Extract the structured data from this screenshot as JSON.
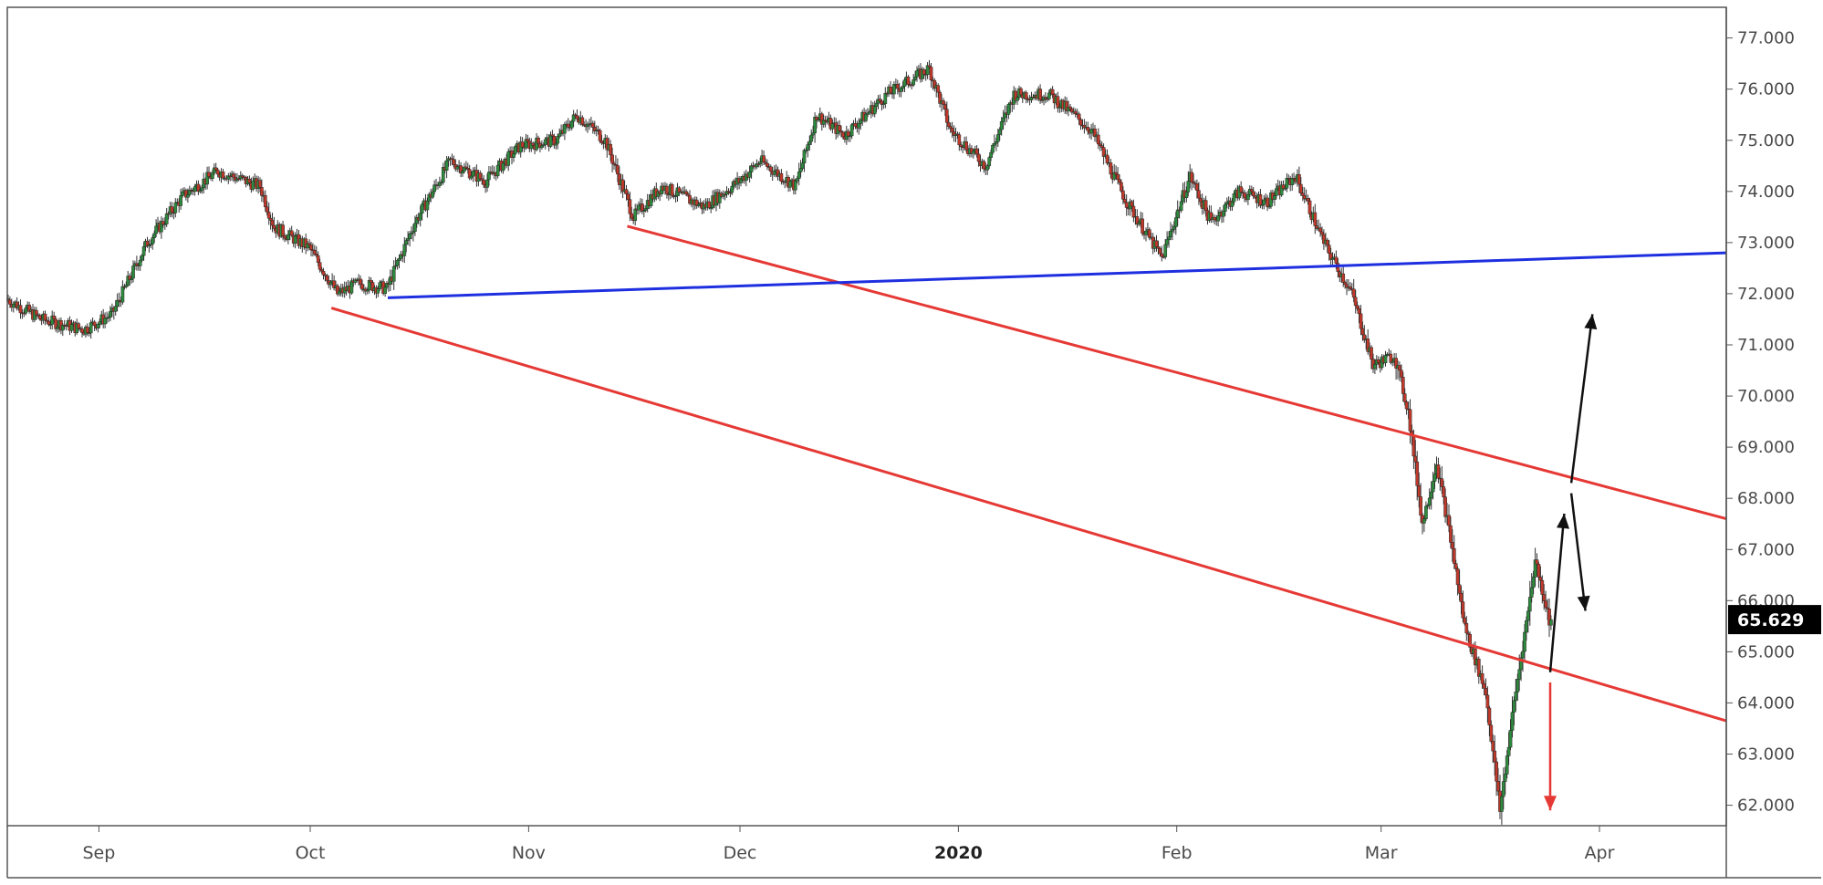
{
  "chart_data": {
    "type": "candlestick",
    "title": "",
    "xlabel": "",
    "ylabel": "",
    "ylim": [
      61.6,
      77.6
    ],
    "y_ticks": [
      "62.000",
      "63.000",
      "64.000",
      "65.000",
      "66.000",
      "67.000",
      "68.000",
      "69.000",
      "70.000",
      "71.000",
      "72.000",
      "73.000",
      "74.000",
      "75.000",
      "76.000",
      "77.000"
    ],
    "x_ticks": [
      {
        "label": "Sep",
        "date": "2019-09-01",
        "strong": false
      },
      {
        "label": "Oct",
        "date": "2019-10-01",
        "strong": false
      },
      {
        "label": "Nov",
        "date": "2019-11-01",
        "strong": false
      },
      {
        "label": "Dec",
        "date": "2019-12-01",
        "strong": false
      },
      {
        "label": "2020",
        "date": "2020-01-01",
        "strong": true
      },
      {
        "label": "Feb",
        "date": "2020-02-01",
        "strong": false
      },
      {
        "label": "Mar",
        "date": "2020-03-01",
        "strong": false
      },
      {
        "label": "Apr",
        "date": "2020-04-01",
        "strong": false
      }
    ],
    "x_range": [
      "2019-08-19",
      "2020-04-19"
    ],
    "grid": false,
    "up_color": "#2e8b3e",
    "down_color": "#c0392b",
    "wick_color": "#333333",
    "last_price": {
      "label": "65.629",
      "value": 65.629
    },
    "price_path": [
      [
        "2019-08-19",
        71.9
      ],
      [
        "2019-08-24",
        71.5
      ],
      [
        "2019-08-30",
        71.3
      ],
      [
        "2019-09-03",
        71.6
      ],
      [
        "2019-09-08",
        73.0
      ],
      [
        "2019-09-13",
        73.9
      ],
      [
        "2019-09-18",
        74.4
      ],
      [
        "2019-09-24",
        74.1
      ],
      [
        "2019-09-26",
        73.3
      ],
      [
        "2019-10-01",
        72.9
      ],
      [
        "2019-10-05",
        72.0
      ],
      [
        "2019-10-08",
        72.2
      ],
      [
        "2019-10-12",
        72.1
      ],
      [
        "2019-10-16",
        73.4
      ],
      [
        "2019-10-21",
        74.6
      ],
      [
        "2019-10-26",
        74.2
      ],
      [
        "2019-10-31",
        74.9
      ],
      [
        "2019-11-05",
        75.0
      ],
      [
        "2019-11-08",
        75.5
      ],
      [
        "2019-11-12",
        75.0
      ],
      [
        "2019-11-16",
        73.5
      ],
      [
        "2019-11-20",
        74.1
      ],
      [
        "2019-11-26",
        73.7
      ],
      [
        "2019-12-01",
        74.2
      ],
      [
        "2019-12-04",
        74.6
      ],
      [
        "2019-12-09",
        74.1
      ],
      [
        "2019-12-12",
        75.5
      ],
      [
        "2019-12-16",
        75.1
      ],
      [
        "2019-12-22",
        75.9
      ],
      [
        "2019-12-28",
        76.4
      ],
      [
        "2019-12-31",
        75.2
      ],
      [
        "2020-01-05",
        74.5
      ],
      [
        "2020-01-09",
        75.9
      ],
      [
        "2020-01-14",
        75.9
      ],
      [
        "2020-01-20",
        75.2
      ],
      [
        "2020-01-25",
        73.8
      ],
      [
        "2020-01-30",
        72.7
      ],
      [
        "2020-02-03",
        74.3
      ],
      [
        "2020-02-06",
        73.4
      ],
      [
        "2020-02-10",
        74.0
      ],
      [
        "2020-02-14",
        73.8
      ],
      [
        "2020-02-18",
        74.3
      ],
      [
        "2020-02-22",
        73.0
      ],
      [
        "2020-02-26",
        72.0
      ],
      [
        "2020-02-29",
        70.6
      ],
      [
        "2020-03-03",
        70.8
      ],
      [
        "2020-03-05",
        69.7
      ],
      [
        "2020-03-07",
        67.5
      ],
      [
        "2020-03-09",
        68.7
      ],
      [
        "2020-03-11",
        67.2
      ],
      [
        "2020-03-13",
        65.5
      ],
      [
        "2020-03-16",
        64.2
      ],
      [
        "2020-03-18",
        61.9
      ],
      [
        "2020-03-20",
        64.0
      ],
      [
        "2020-03-22",
        65.8
      ],
      [
        "2020-03-23",
        66.8
      ],
      [
        "2020-03-25",
        65.629
      ]
    ]
  },
  "annotations": {
    "trendlines": [
      {
        "name": "support-line",
        "color": "#e53935",
        "from": [
          "2019-10-04",
          71.72
        ],
        "to": [
          "2020-04-19",
          63.65
        ]
      },
      {
        "name": "upper-red-line",
        "color": "#e53935",
        "from": [
          "2019-11-15",
          73.32
        ],
        "to": [
          "2020-04-19",
          67.6
        ]
      },
      {
        "name": "blue-line",
        "color": "#1e2fe0",
        "from": [
          "2019-10-12",
          71.92
        ],
        "to": [
          "2020-04-19",
          72.8
        ]
      }
    ],
    "arrows": [
      {
        "name": "arrow-up-long",
        "color": "#111111",
        "from": [
          "2020-03-28",
          68.3
        ],
        "to": [
          "2020-03-31",
          71.6
        ]
      },
      {
        "name": "arrow-down-right",
        "color": "#111111",
        "from": [
          "2020-03-28",
          68.1
        ],
        "to": [
          "2020-03-30",
          65.8
        ]
      },
      {
        "name": "arrow-up-short",
        "color": "#111111",
        "from": [
          "2020-03-25",
          64.6
        ],
        "to": [
          "2020-03-27",
          67.7
        ]
      },
      {
        "name": "arrow-down-red",
        "color": "#e53935",
        "from": [
          "2020-03-25",
          64.4
        ],
        "to": [
          "2020-03-25",
          61.9
        ]
      }
    ]
  }
}
